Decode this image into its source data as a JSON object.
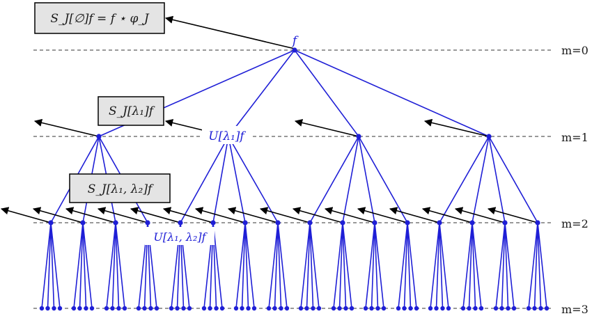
{
  "diagram": {
    "root_label": "f",
    "levels": [
      "m=0",
      "m=1",
      "m=2",
      "m=3"
    ],
    "boxes": {
      "s_empty": "S_J[∅]f = f ⋆ φ_J",
      "s_lambda1": "S_J[λ₁]f",
      "s_lambda12": "S_J[λ₁, λ₂]f"
    },
    "node_labels": {
      "u_lambda1": "U[λ₁]f",
      "u_lambda12": "U[λ₁, λ₂]f"
    },
    "colors": {
      "tree": "#1f1fd6",
      "arrow": "#000000",
      "box_fill": "#e4e4e4",
      "box_border": "#000000",
      "dashed": "#333333"
    }
  }
}
